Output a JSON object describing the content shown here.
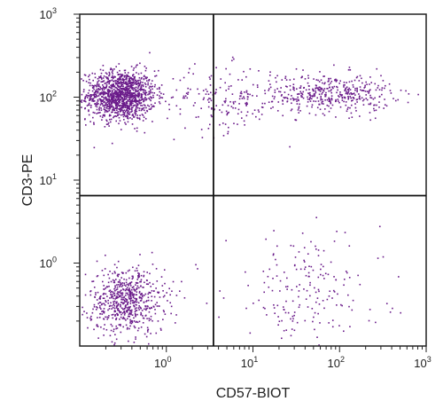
{
  "chart_data": {
    "type": "scatter",
    "xlabel": "CD57-BIOT",
    "ylabel": "CD3-PE",
    "x_scale": "log",
    "y_scale": "log",
    "xlim": [
      0.1,
      1000
    ],
    "ylim": [
      0.1,
      1000
    ],
    "grid": false,
    "x_ticks": [
      {
        "base": "10",
        "exp": "0",
        "value": 1
      },
      {
        "base": "10",
        "exp": "1",
        "value": 10
      },
      {
        "base": "10",
        "exp": "2",
        "value": 100
      },
      {
        "base": "10",
        "exp": "3",
        "value": 1000
      }
    ],
    "y_ticks": [
      {
        "base": "10",
        "exp": "0",
        "value": 1
      },
      {
        "base": "10",
        "exp": "1",
        "value": 10
      },
      {
        "base": "10",
        "exp": "2",
        "value": 100
      },
      {
        "base": "10",
        "exp": "3",
        "value": 1000
      }
    ],
    "quadrant_gates": {
      "x": 3.5,
      "y": 6.5
    },
    "point_color": "#6a1b8a",
    "populations": [
      {
        "description": "CD3+ CD57- cluster",
        "x_center": 0.3,
        "y_center": 105,
        "x_spread_log": 0.2,
        "y_spread_log": 0.15,
        "count": 1300
      },
      {
        "description": "CD3+ CD57 low scatter",
        "x_center": 5.0,
        "y_center": 95,
        "x_spread_log": 0.35,
        "y_spread_log": 0.2,
        "count": 180
      },
      {
        "description": "CD3+ CD57+ cluster",
        "x_center": 80,
        "y_center": 110,
        "x_spread_log": 0.35,
        "y_spread_log": 0.12,
        "count": 420
      },
      {
        "description": "CD3- CD57- cluster",
        "x_center": 0.35,
        "y_center": 0.35,
        "x_spread_log": 0.22,
        "y_spread_log": 0.2,
        "count": 650
      },
      {
        "description": "CD3- CD57+ scatter",
        "x_center": 40,
        "y_center": 0.45,
        "x_spread_log": 0.45,
        "y_spread_log": 0.35,
        "count": 190
      }
    ]
  }
}
